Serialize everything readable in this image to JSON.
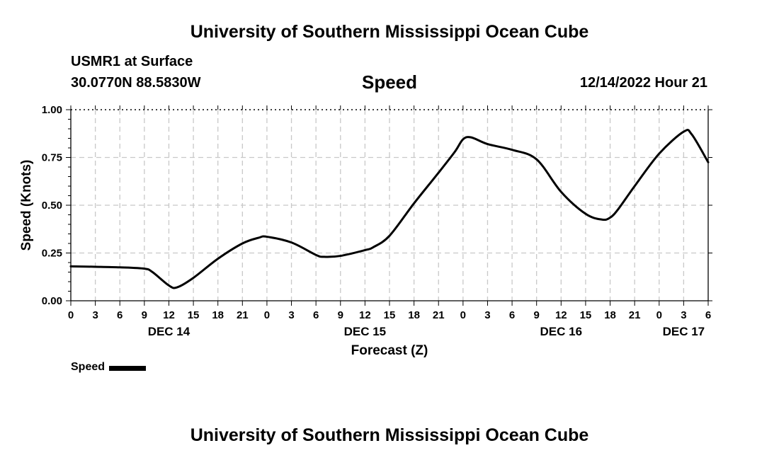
{
  "page": {
    "title_top": "University of Southern Mississippi Ocean Cube",
    "title_bottom": "University of Southern Mississippi Ocean Cube",
    "station": "USMR1 at Surface",
    "coordinates": "30.0770N  88.5830W",
    "chart_title": "Speed",
    "run_time": "12/14/2022 Hour 21",
    "legend_label": "Speed"
  },
  "chart_data": {
    "type": "line",
    "title": "Speed",
    "xlabel": "Forecast (Z)",
    "ylabel": "Speed (Knots)",
    "ylim": [
      0,
      1
    ],
    "yticks": [
      "0.00",
      "0.25",
      "0.50",
      "0.75",
      "1.00"
    ],
    "ytick_values": [
      0,
      0.25,
      0.5,
      0.75,
      1.0
    ],
    "xlim": [
      0,
      78
    ],
    "xticks": [
      "0",
      "3",
      "6",
      "9",
      "12",
      "15",
      "18",
      "21",
      "0",
      "3",
      "6",
      "9",
      "12",
      "15",
      "18",
      "21",
      "0",
      "3",
      "6",
      "9",
      "12",
      "15",
      "18",
      "21",
      "0",
      "3",
      "6"
    ],
    "date_labels": [
      {
        "label": "DEC 14",
        "hour": 12
      },
      {
        "label": "DEC 15",
        "hour": 36
      },
      {
        "label": "DEC 16",
        "hour": 60
      },
      {
        "label": "DEC 17",
        "hour": 75
      }
    ],
    "grid": true,
    "legend_position": "bottom-left",
    "series": [
      {
        "name": "Speed",
        "x": [
          0,
          3,
          6,
          9,
          10,
          12,
          13,
          15,
          18,
          21,
          23,
          24,
          27,
          30,
          31,
          33,
          36,
          37,
          39,
          42,
          45,
          47,
          48,
          49,
          51,
          54,
          57,
          60,
          63,
          65,
          66,
          67,
          69,
          72,
          75,
          76,
          78
        ],
        "values": [
          0.18,
          0.178,
          0.175,
          0.168,
          0.15,
          0.08,
          0.07,
          0.12,
          0.22,
          0.3,
          0.33,
          0.335,
          0.305,
          0.24,
          0.23,
          0.235,
          0.265,
          0.28,
          0.34,
          0.51,
          0.67,
          0.78,
          0.845,
          0.855,
          0.82,
          0.79,
          0.74,
          0.57,
          0.455,
          0.425,
          0.435,
          0.48,
          0.6,
          0.77,
          0.885,
          0.87,
          0.725
        ]
      }
    ]
  }
}
